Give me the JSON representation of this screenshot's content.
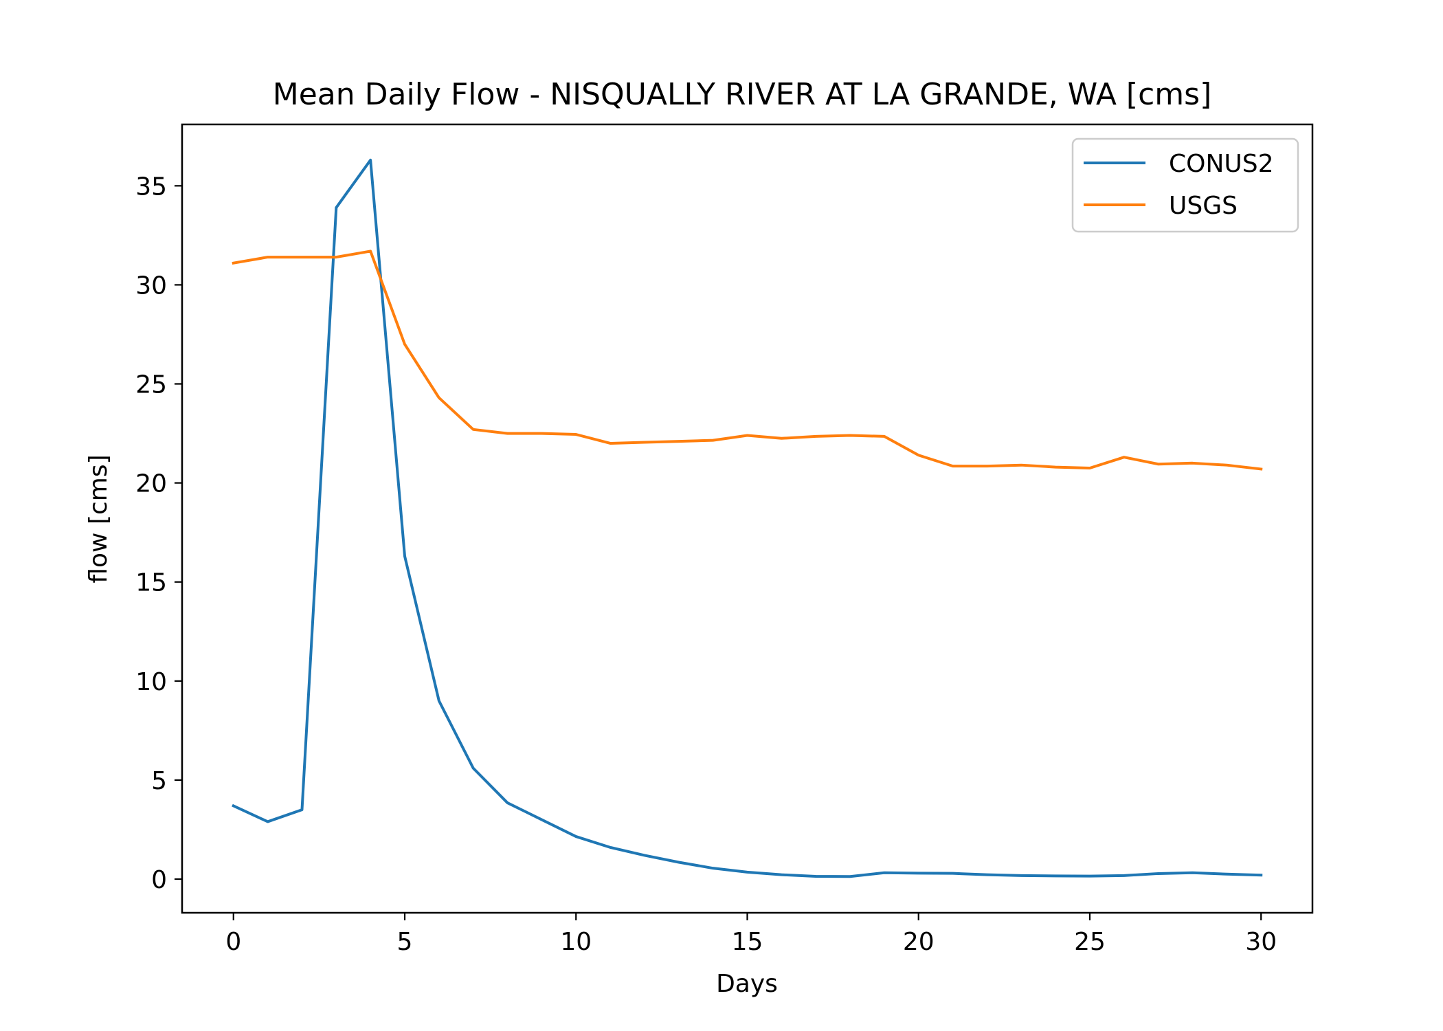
{
  "chart_data": {
    "type": "line",
    "title": "Mean Daily Flow - NISQUALLY RIVER AT LA GRANDE, WA [cms]",
    "xlabel": "Days",
    "ylabel": "flow [cms]",
    "xlim": [
      -1.5,
      31.5
    ],
    "ylim": [
      -1.7,
      38.1
    ],
    "x_ticks": [
      0,
      5,
      10,
      15,
      20,
      25,
      30
    ],
    "y_ticks": [
      0,
      5,
      10,
      15,
      20,
      25,
      30,
      35
    ],
    "grid": false,
    "legend_position": "top-right",
    "x": [
      0,
      1,
      2,
      3,
      4,
      5,
      6,
      7,
      8,
      9,
      10,
      11,
      12,
      13,
      14,
      15,
      16,
      17,
      18,
      19,
      20,
      21,
      22,
      23,
      24,
      25,
      26,
      27,
      28,
      29,
      30
    ],
    "series": [
      {
        "name": "CONUS2",
        "color": "#1f77b4",
        "values": [
          3.7,
          2.9,
          3.5,
          33.9,
          36.3,
          16.3,
          9.0,
          5.6,
          3.85,
          3.0,
          2.15,
          1.6,
          1.2,
          0.85,
          0.55,
          0.35,
          0.22,
          0.14,
          0.13,
          0.32,
          0.3,
          0.29,
          0.22,
          0.18,
          0.16,
          0.15,
          0.18,
          0.28,
          0.32,
          0.25,
          0.2
        ]
      },
      {
        "name": "USGS",
        "color": "#ff7f0e",
        "values": [
          31.1,
          31.4,
          31.4,
          31.4,
          31.7,
          27.0,
          24.3,
          22.7,
          22.5,
          22.5,
          22.45,
          22.0,
          22.05,
          22.1,
          22.15,
          22.4,
          22.25,
          22.35,
          22.4,
          22.35,
          21.4,
          20.85,
          20.85,
          20.9,
          20.8,
          20.75,
          21.3,
          20.95,
          21.0,
          20.9,
          20.7
        ]
      }
    ]
  }
}
